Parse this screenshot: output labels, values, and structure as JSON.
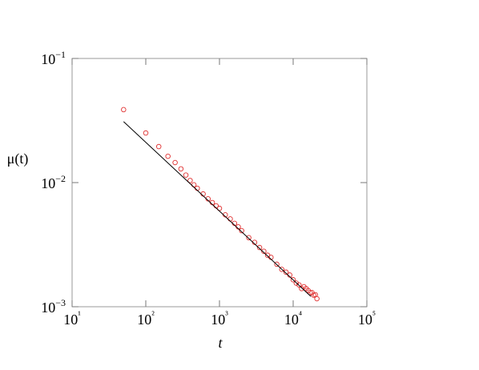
{
  "chart_data": {
    "type": "scatter",
    "x_label": "t",
    "y_label": "μ(t)",
    "xscale": "log",
    "yscale": "log",
    "xlim": [
      10,
      100000
    ],
    "ylim": [
      0.001,
      0.1
    ],
    "xticks": [
      {
        "value": 10,
        "label": "10¹"
      },
      {
        "value": 100,
        "label": "10²"
      },
      {
        "value": 1000,
        "label": "10³"
      },
      {
        "value": 10000,
        "label": "10⁴"
      },
      {
        "value": 100000,
        "label": "10⁵"
      }
    ],
    "yticks": [
      {
        "value": 0.001,
        "label": "10−3"
      },
      {
        "value": 0.01,
        "label": "10−2"
      },
      {
        "value": 0.1,
        "label": "10−1"
      }
    ],
    "series": [
      {
        "type": "scatter",
        "color": "#e03030",
        "x": [
          50,
          100,
          150,
          200,
          250,
          300,
          350,
          400,
          450,
          500,
          600,
          700,
          800,
          900,
          1000,
          1200,
          1400,
          1600,
          1800,
          2000,
          2500,
          3000,
          3500,
          4000,
          4500,
          5000,
          6000,
          7000,
          8000,
          9000,
          10000,
          11000,
          12000,
          13000,
          14000,
          15000,
          16000,
          17000,
          18000,
          19000,
          20000,
          21000
        ],
        "values": [
          0.0387,
          0.0251,
          0.0195,
          0.0163,
          0.0145,
          0.0129,
          0.0115,
          0.0104,
          0.0096,
          0.009,
          0.0081,
          0.0074,
          0.0069,
          0.0065,
          0.0062,
          0.0055,
          0.0051,
          0.0047,
          0.0044,
          0.0041,
          0.0036,
          0.0033,
          0.003,
          0.0028,
          0.0026,
          0.0025,
          0.0022,
          0.002,
          0.0019,
          0.0018,
          0.00165,
          0.00155,
          0.0015,
          0.0014,
          0.00145,
          0.0014,
          0.00135,
          0.0013,
          0.0013,
          0.00124,
          0.00125,
          0.00116
        ]
      },
      {
        "type": "line",
        "color": "#000000",
        "x": [
          50,
          17400
        ],
        "values": [
          0.031,
          0.00121
        ]
      }
    ]
  }
}
